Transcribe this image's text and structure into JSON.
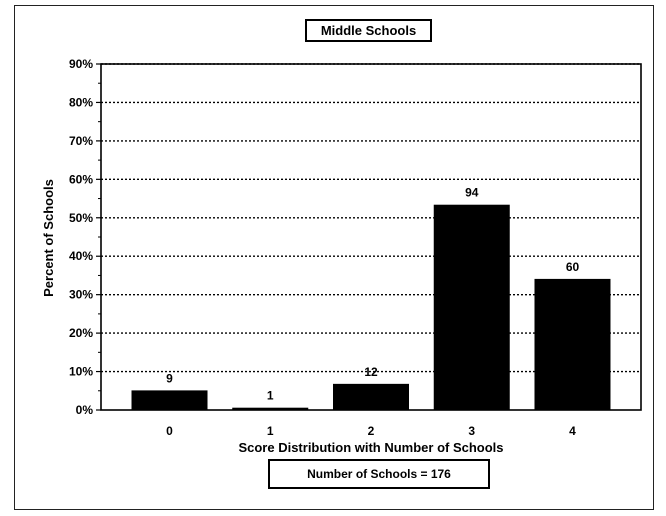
{
  "chart_data": {
    "type": "bar",
    "title": "Middle Schools",
    "xlabel": "Score Distribution with Number of Schools",
    "ylabel": "Percent of Schools",
    "categories": [
      "0",
      "1",
      "2",
      "3",
      "4"
    ],
    "values": [
      5.1,
      0.6,
      6.8,
      53.4,
      34.1
    ],
    "data_labels": [
      "9",
      "1",
      "12",
      "94",
      "60"
    ],
    "ylim": [
      0,
      90
    ],
    "yticks": [
      "0%",
      "10%",
      "20%",
      "30%",
      "40%",
      "50%",
      "60%",
      "70%",
      "80%",
      "90%"
    ],
    "grid": true,
    "bar_color": "#000000",
    "footnote": "Number of Schools = 176"
  }
}
